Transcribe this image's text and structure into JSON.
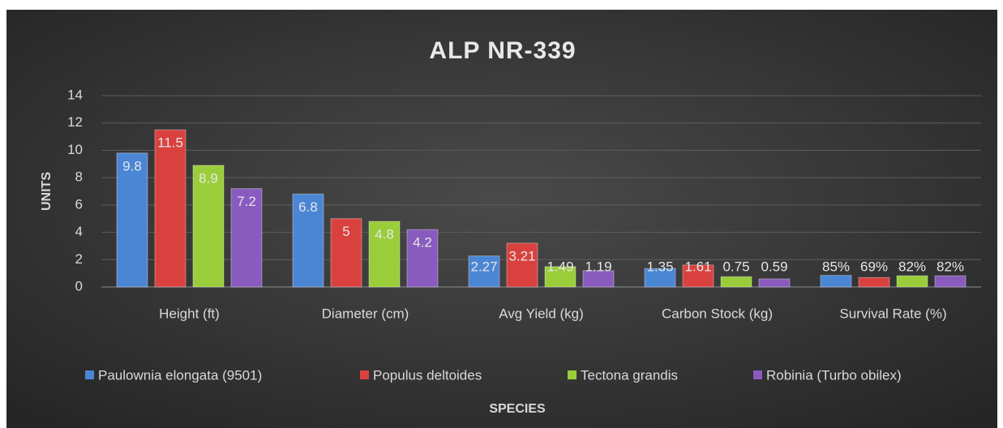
{
  "chart_data": {
    "type": "bar",
    "title": "ALP NR-339",
    "y_label": "UNITS",
    "x_label": "SPECIES",
    "categories": [
      "Height (ft)",
      "Diameter (cm)",
      "Avg Yield (kg)",
      "Carbon Stock (kg)",
      "Survival Rate (%)"
    ],
    "series": [
      {
        "name": "Paulownia elongata (9501)",
        "color": "#4a86d4",
        "values": [
          9.8,
          6.8,
          2.27,
          1.35,
          0.85
        ],
        "value_labels": [
          "9.8",
          "6.8",
          "2.27",
          "1.35",
          "85%"
        ]
      },
      {
        "name": "Populus deltoides",
        "color": "#d9413f",
        "values": [
          11.5,
          5,
          3.21,
          1.61,
          0.69
        ],
        "value_labels": [
          "11.5",
          "5",
          "3.21",
          "1.61",
          "69%"
        ]
      },
      {
        "name": "Tectona grandis",
        "color": "#9acd3a",
        "values": [
          8.9,
          4.8,
          1.49,
          0.75,
          0.82
        ],
        "value_labels": [
          "8.9",
          "4.8",
          "1.49",
          "0.75",
          "82%"
        ]
      },
      {
        "name": "Robinia (Turbo obilex)",
        "color": "#8a5bbf",
        "values": [
          7.2,
          4.2,
          1.19,
          0.59,
          0.82
        ],
        "value_labels": [
          "7.2",
          "4.2",
          "1.19",
          "0.59",
          "82%"
        ]
      }
    ],
    "ylim": [
      0,
      14
    ],
    "yticks": [
      0,
      2,
      4,
      6,
      8,
      10,
      12,
      14
    ],
    "grid": true,
    "legend": "bottom"
  }
}
